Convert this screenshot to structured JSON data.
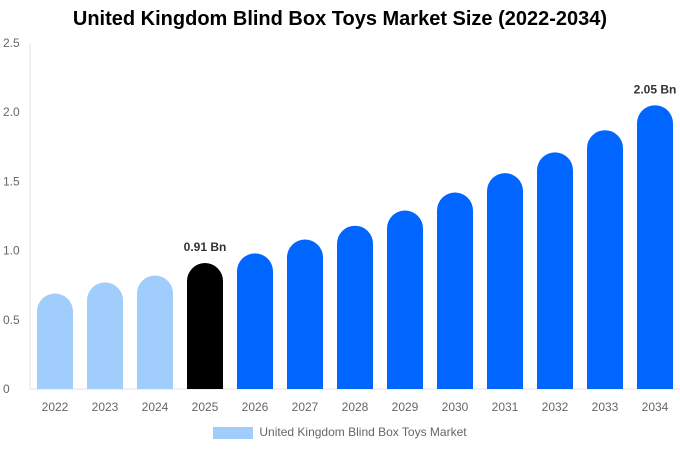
{
  "chart_data": {
    "type": "bar",
    "title": "United Kingdom Blind Box Toys Market Size (2022-2034)",
    "categories": [
      "2022",
      "2023",
      "2024",
      "2025",
      "2026",
      "2027",
      "2028",
      "2029",
      "2030",
      "2031",
      "2032",
      "2033",
      "2034"
    ],
    "series": [
      {
        "name": "United Kingdom Blind Box Toys Market",
        "values": [
          0.69,
          0.77,
          0.82,
          0.91,
          0.98,
          1.08,
          1.18,
          1.29,
          1.42,
          1.56,
          1.71,
          1.87,
          2.05
        ]
      }
    ],
    "data_labels": {
      "3": "0.91 Bn",
      "12": "2.05 Bn"
    },
    "ylim": [
      0,
      2.5
    ],
    "yticks": [
      "0",
      "0.5",
      "1.0",
      "1.5",
      "2.0",
      "2.5"
    ],
    "grid": false,
    "legend": "bottom",
    "colors": {
      "historical": "#a0cdfc",
      "base_year": "#000000",
      "forecast": "#0066ff"
    }
  }
}
